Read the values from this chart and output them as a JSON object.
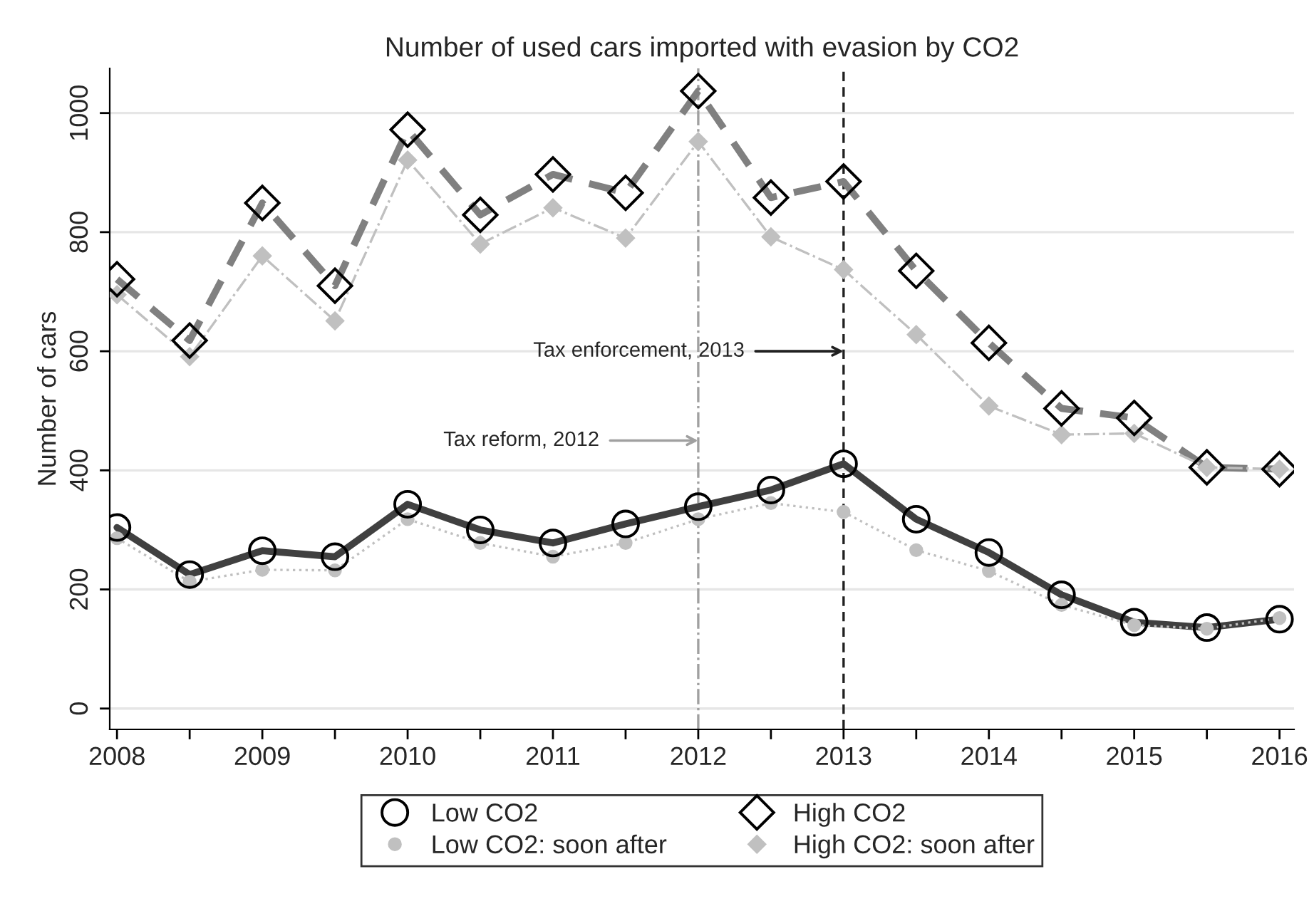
{
  "chart_data": {
    "type": "line",
    "title": "Number of used cars imported with evasion by CO2",
    "ylabel": "Number of cars",
    "x": [
      2008,
      2008.5,
      2009,
      2009.5,
      2010,
      2010.5,
      2011,
      2011.5,
      2012,
      2012.5,
      2013,
      2013.5,
      2014,
      2014.5,
      2015,
      2015.5,
      2016
    ],
    "series": [
      {
        "name": "Low CO2",
        "color": "#404040",
        "marker": "circle",
        "line_style": "solid",
        "values": [
          304,
          225,
          265,
          255,
          343,
          300,
          278,
          310,
          339,
          367,
          411,
          318,
          262,
          191,
          145,
          136,
          150
        ]
      },
      {
        "name": "High CO2",
        "color": "#808080",
        "marker": "diamond",
        "line_style": "dashed",
        "values": [
          721,
          618,
          849,
          710,
          972,
          829,
          897,
          866,
          1037,
          858,
          885,
          735,
          614,
          504,
          488,
          405,
          402
        ]
      },
      {
        "name": "Low CO2: soon after",
        "color": "#c0c0c0",
        "marker": "circle",
        "line_style": "dotted",
        "values": [
          286,
          213,
          233,
          232,
          318,
          278,
          255,
          278,
          318,
          345,
          330,
          266,
          231,
          174,
          140,
          134,
          152
        ]
      },
      {
        "name": "High CO2: soon after",
        "color": "#c0c0c0",
        "marker": "diamond",
        "line_style": "dashdot",
        "values": [
          695,
          591,
          760,
          651,
          921,
          780,
          841,
          790,
          952,
          792,
          737,
          628,
          508,
          460,
          462,
          405,
          402
        ]
      }
    ],
    "xlim": [
      2007.95,
      2016.1
    ],
    "ylim": [
      -35,
      1075
    ],
    "xticks": [
      2008,
      {
        "value": 2008.5,
        "label": null
      },
      2009,
      {
        "value": 2009.5,
        "label": null
      },
      2010,
      {
        "value": 2010.5,
        "label": null
      },
      2011,
      {
        "value": 2011.5,
        "label": null
      },
      2012,
      {
        "value": 2012.5,
        "label": null
      },
      2013,
      {
        "value": 2013.5,
        "label": null
      },
      2014,
      {
        "value": 2014.5,
        "label": null
      },
      2015,
      {
        "value": 2015.5,
        "label": null
      },
      2016
    ],
    "yticks": [
      0,
      200,
      400,
      600,
      800,
      1000
    ],
    "ref_lines": [
      {
        "axis": "x",
        "value": 2012,
        "color": "#a0a0a0",
        "line_style": "dashdot"
      },
      {
        "axis": "x",
        "value": 2013,
        "color": "#202020",
        "line_style": "dashed"
      }
    ],
    "annotations": [
      {
        "text": "Tax reform, 2012",
        "x": 2012,
        "y": 450
      },
      {
        "text": "Tax enforcement, 2013",
        "x": 2013,
        "y": 600
      }
    ],
    "grid": "y",
    "legend": "bottom"
  }
}
